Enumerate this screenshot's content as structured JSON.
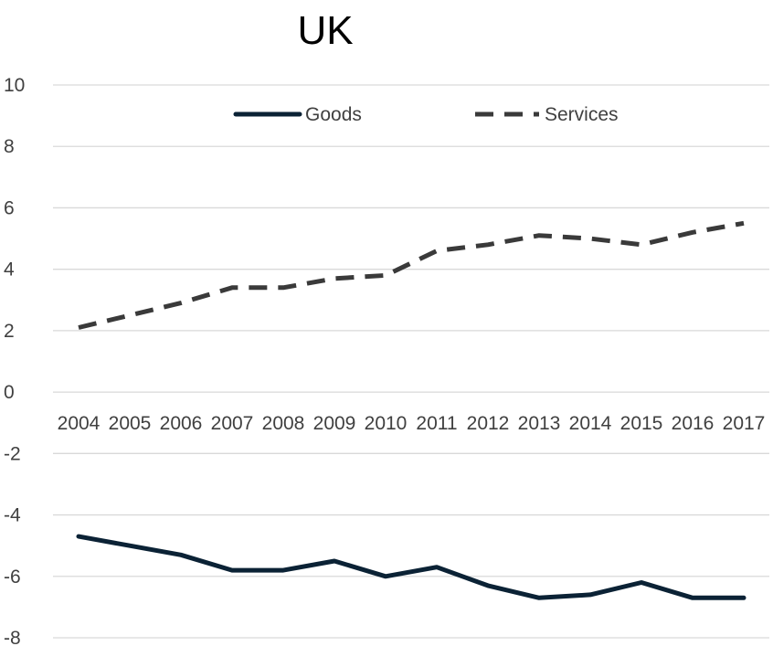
{
  "chart_data": {
    "type": "line",
    "title": "UK",
    "xlabel": "",
    "ylabel": "",
    "ylim": [
      -8,
      10
    ],
    "yticks": [
      "-8",
      "-6",
      "-4",
      "-2",
      "0",
      "2",
      "4",
      "6",
      "8",
      "10"
    ],
    "categories": [
      "2004",
      "2005",
      "2006",
      "2007",
      "2008",
      "2009",
      "2010",
      "2011",
      "2012",
      "2013",
      "2014",
      "2015",
      "2016",
      "2017"
    ],
    "grid": "horizontal",
    "legend_position": "top",
    "series": [
      {
        "name": "Goods",
        "style": "solid",
        "color": "#0b2235",
        "values": [
          -4.7,
          -5.0,
          -5.3,
          -5.8,
          -5.8,
          -5.5,
          -6.0,
          -5.7,
          -6.3,
          -6.7,
          -6.6,
          -6.2,
          -6.7,
          -6.7
        ]
      },
      {
        "name": "Services",
        "style": "dashed",
        "color": "#3a3a3a",
        "values": [
          2.1,
          2.5,
          2.9,
          3.4,
          3.4,
          3.7,
          3.8,
          4.6,
          4.8,
          5.1,
          5.0,
          4.8,
          5.2,
          5.5
        ]
      }
    ]
  }
}
